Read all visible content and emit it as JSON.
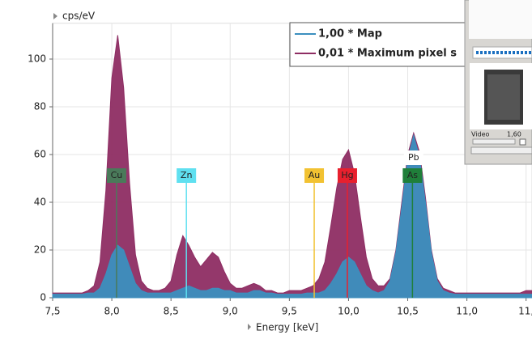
{
  "chart_data": {
    "type": "area",
    "y_label": "cps/eV",
    "x_label": "Energy [keV]",
    "x": [
      7.5,
      7.55,
      7.6,
      7.65,
      7.7,
      7.75,
      7.8,
      7.85,
      7.9,
      7.95,
      8.0,
      8.05,
      8.1,
      8.15,
      8.2,
      8.25,
      8.3,
      8.35,
      8.4,
      8.45,
      8.5,
      8.55,
      8.6,
      8.65,
      8.7,
      8.75,
      8.8,
      8.85,
      8.9,
      8.95,
      9.0,
      9.05,
      9.1,
      9.15,
      9.2,
      9.25,
      9.3,
      9.35,
      9.4,
      9.45,
      9.5,
      9.55,
      9.6,
      9.65,
      9.7,
      9.75,
      9.8,
      9.85,
      9.9,
      9.95,
      10.0,
      10.05,
      10.1,
      10.15,
      10.2,
      10.25,
      10.3,
      10.35,
      10.4,
      10.45,
      10.5,
      10.55,
      10.6,
      10.65,
      10.7,
      10.75,
      10.8,
      10.85,
      10.9,
      10.95,
      11.0,
      11.05,
      11.1,
      11.15,
      11.2,
      11.25,
      11.3,
      11.35,
      11.4,
      11.45,
      11.5,
      11.55
    ],
    "series": [
      {
        "name": "0,01 * Maximum pixel s",
        "color": "#8e2d63",
        "values": [
          2,
          2,
          2,
          2,
          2,
          2,
          3,
          5,
          15,
          45,
          92,
          110,
          88,
          48,
          18,
          7,
          4,
          3,
          3,
          4,
          7,
          18,
          26,
          22,
          17,
          13,
          16,
          19,
          17,
          11,
          6,
          4,
          4,
          5,
          6,
          5,
          3,
          3,
          2,
          2,
          3,
          3,
          3,
          4,
          5,
          8,
          15,
          30,
          46,
          58,
          62,
          52,
          34,
          17,
          8,
          5,
          5,
          8,
          20,
          40,
          60,
          69,
          61,
          42,
          20,
          8,
          4,
          3,
          2,
          2,
          2,
          2,
          2,
          2,
          2,
          2,
          2,
          2,
          2,
          2,
          3,
          3
        ]
      },
      {
        "name": "1,00 * Map",
        "color": "#3b8fbf",
        "values": [
          1.5,
          1.5,
          1.5,
          1.5,
          1.5,
          1.5,
          2,
          2,
          4,
          10,
          18,
          22,
          20,
          13,
          6,
          3,
          2,
          2,
          2,
          2,
          2,
          3,
          4,
          5,
          4,
          3,
          3,
          4,
          4,
          3,
          3,
          2,
          2,
          2,
          3,
          3,
          2,
          2,
          1.5,
          1.5,
          1.5,
          1.5,
          1.5,
          2,
          2,
          2,
          3,
          6,
          10,
          15,
          17,
          15,
          10,
          5,
          3,
          2,
          3,
          7,
          19,
          38,
          58,
          68,
          59,
          40,
          19,
          7,
          3,
          2,
          1.5,
          1.5,
          1.5,
          1.5,
          1.5,
          1.5,
          1.5,
          1.5,
          1.5,
          1.5,
          1.5,
          1.5,
          1.5,
          1.5
        ]
      }
    ],
    "markers": [
      {
        "label": "Cu",
        "x": 8.04,
        "color": "#4a7a5a"
      },
      {
        "label": "Zn",
        "x": 8.63,
        "color": "#5fe0f0"
      },
      {
        "label": "Au",
        "x": 9.71,
        "color": "#f2c232"
      },
      {
        "label": "Hg",
        "x": 9.99,
        "color": "#e8202e"
      },
      {
        "label": "As",
        "x": 10.54,
        "color": "#1f7f3a"
      },
      {
        "label": "Pb",
        "x": 10.55,
        "color": "#ffffff"
      }
    ],
    "xlim": [
      7.5,
      11.55
    ],
    "ylim": [
      0,
      115
    ],
    "xticks": [
      {
        "value": 7.5,
        "label": "7,5"
      },
      {
        "value": 8.0,
        "label": "8,0"
      },
      {
        "value": 8.5,
        "label": "8,5"
      },
      {
        "value": 9.0,
        "label": "9,0"
      },
      {
        "value": 9.5,
        "label": "9,5"
      },
      {
        "value": 10.0,
        "label": "10,0"
      },
      {
        "value": 10.5,
        "label": "10,5"
      },
      {
        "value": 11.0,
        "label": "11,0"
      },
      {
        "value": 11.5,
        "label": "11,"
      }
    ],
    "yticks": [
      0,
      20,
      40,
      60,
      80,
      100
    ],
    "grid": true,
    "legend": "top-right"
  },
  "panel": {
    "label": "Video",
    "value": "1,60"
  }
}
